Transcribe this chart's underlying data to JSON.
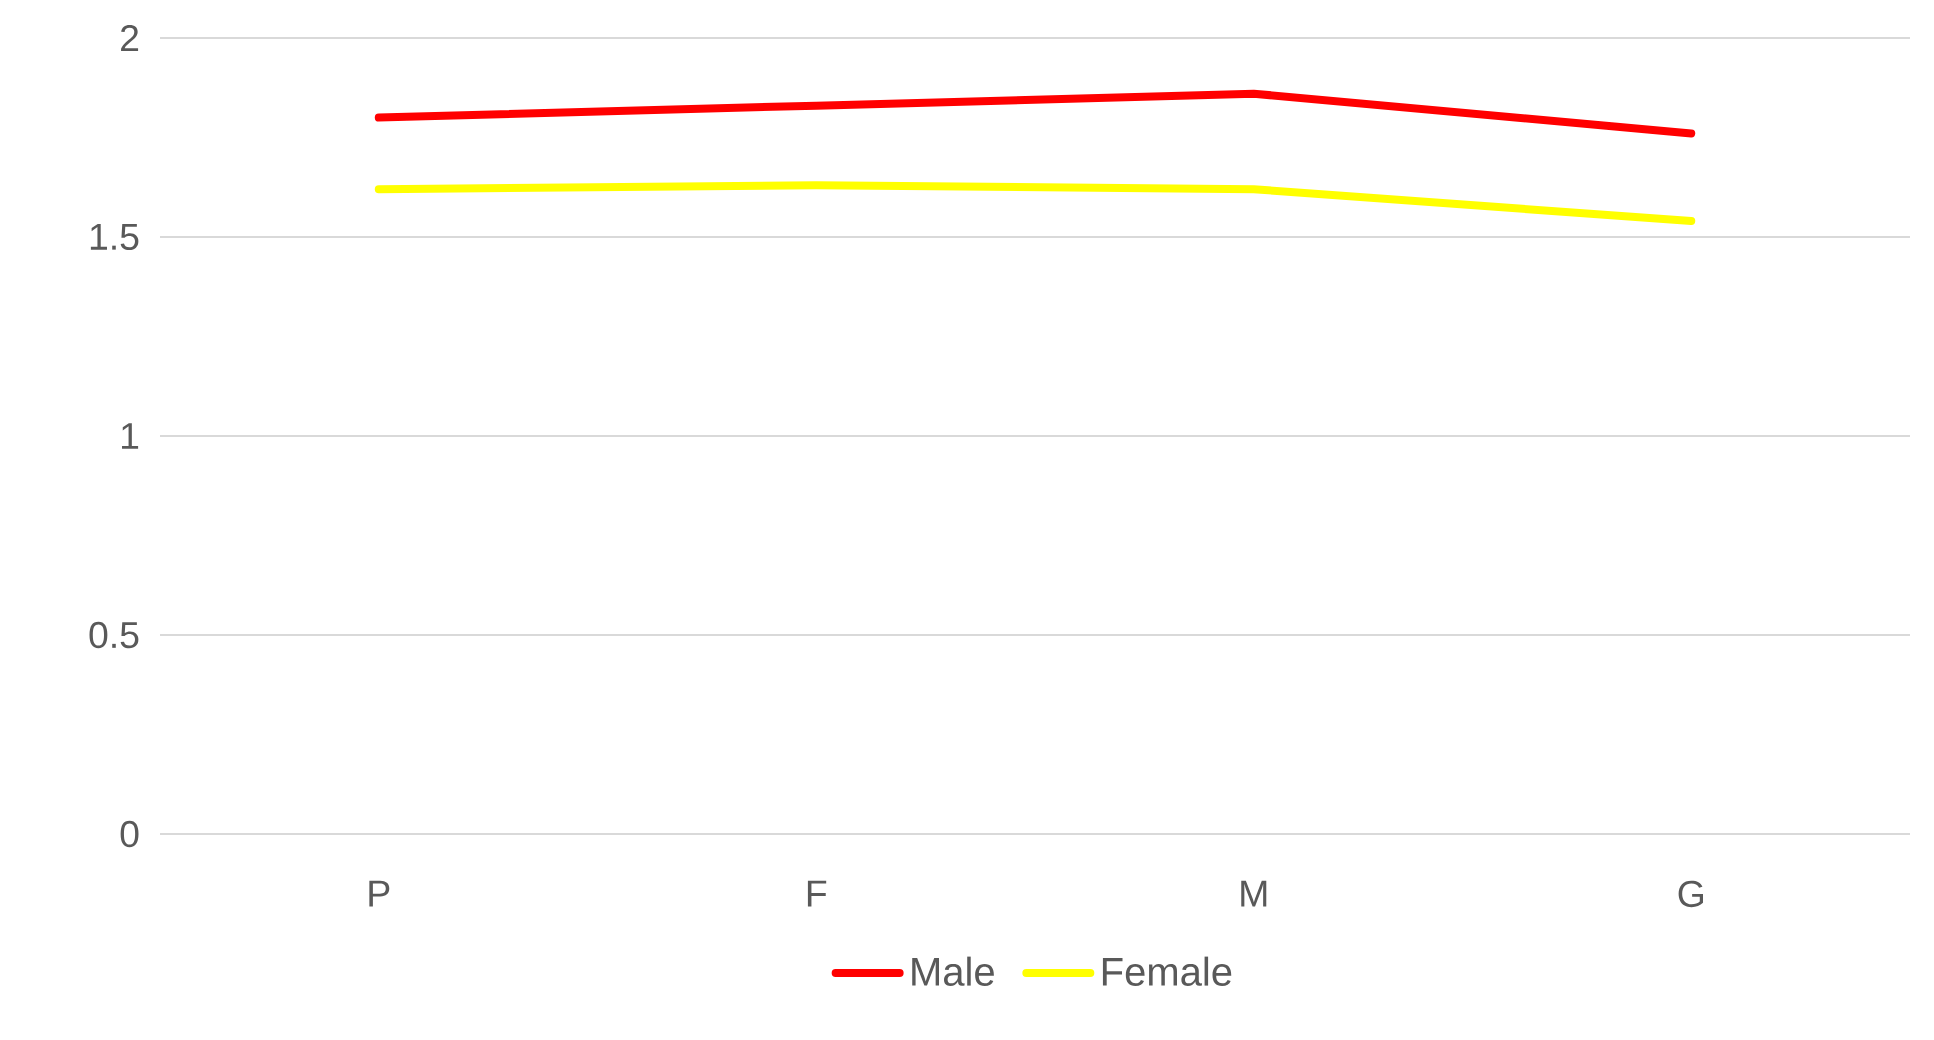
{
  "chart_data": {
    "type": "line",
    "categories": [
      "P",
      "F",
      "M",
      "G"
    ],
    "series": [
      {
        "name": "Male",
        "color": "#ff0000",
        "values": [
          1.8,
          1.83,
          1.86,
          1.76
        ]
      },
      {
        "name": "Female",
        "color": "#ffff00",
        "values": [
          1.62,
          1.63,
          1.62,
          1.54
        ]
      }
    ],
    "ylim": [
      0,
      2
    ],
    "yticks": [
      0,
      0.5,
      1,
      1.5,
      2
    ],
    "grid": "y",
    "legend": "bottom",
    "marker": "none",
    "line_style": "solid"
  }
}
